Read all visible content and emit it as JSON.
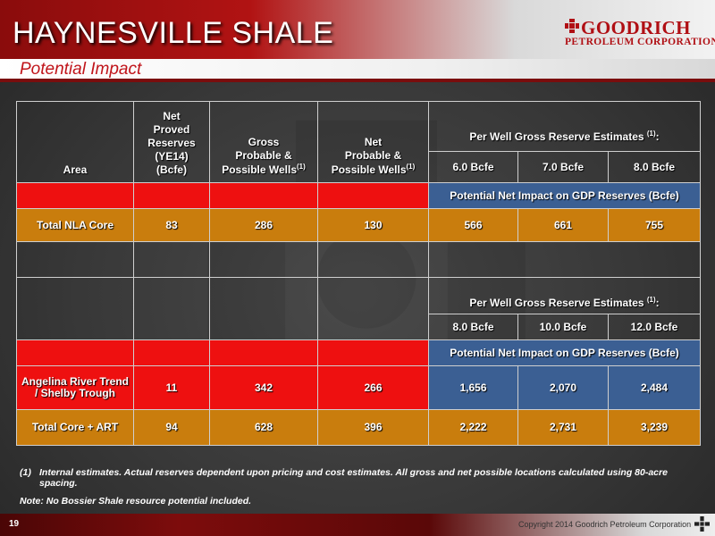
{
  "header": {
    "title": "HAYNESVILLE SHALE",
    "subtitle": "Potential Impact",
    "logo_name": "GOODRICH",
    "logo_corp": "PETROLEUM CORPORATION"
  },
  "table": {
    "col_area": "Area",
    "col_proved": [
      "Net",
      "Proved",
      "Reserves",
      "(YE14)",
      "(Bcfe)"
    ],
    "col_gross": [
      "Gross",
      "Probable &",
      "Possible Wells"
    ],
    "col_gross_sup": "(1)",
    "col_net": [
      "Net",
      "Probable &",
      "Possible Wells"
    ],
    "col_net_sup": "(1)",
    "per_well_title": "Per Well Gross Reserve Estimates ",
    "per_well_sup": "(1)",
    "per_well_colon": ":",
    "estimates_1": [
      "6.0 Bcfe",
      "7.0 Bcfe",
      "8.0 Bcfe"
    ],
    "impact_label": "Potential Net Impact on GDP Reserves (Bcfe)",
    "row_nla": {
      "area": "Total NLA Core",
      "proved": "83",
      "gross": "286",
      "net": "130",
      "v1": "566",
      "v2": "661",
      "v3": "755"
    },
    "estimates_2": [
      "8.0 Bcfe",
      "10.0 Bcfe",
      "12.0 Bcfe"
    ],
    "row_art": {
      "area": "Angelina River Trend / Shelby Trough",
      "proved": "11",
      "gross": "342",
      "net": "266",
      "v1": "1,656",
      "v2": "2,070",
      "v3": "2,484"
    },
    "row_total": {
      "area": "Total Core + ART",
      "proved": "94",
      "gross": "628",
      "net": "396",
      "v1": "2,222",
      "v2": "2,731",
      "v3": "3,239"
    }
  },
  "notes": {
    "note1_num": "(1)",
    "note1_text": "Internal estimates.  Actual reserves dependent upon pricing and cost estimates.  All gross and net possible locations calculated using 80-acre spacing.",
    "note2": "Note:  No Bossier Shale resource potential included."
  },
  "footer": {
    "page": "19",
    "copyright": "Copyright 2014 Goodrich Petroleum Corporation"
  },
  "colors": {
    "header_red": "#b11313",
    "cell_red": "#ee1010",
    "cell_gold": "#c97d0d",
    "cell_blue": "#3b5f93"
  }
}
